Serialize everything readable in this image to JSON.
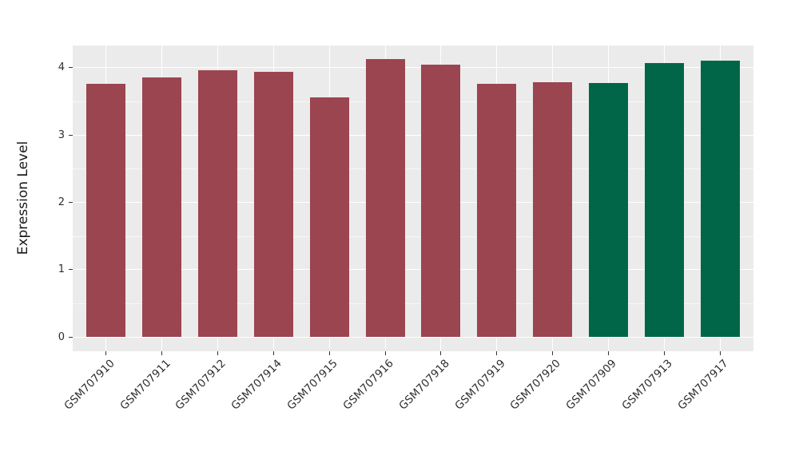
{
  "chart_data": {
    "type": "bar",
    "title": "",
    "xlabel": "",
    "ylabel": "Expression Level",
    "categories": [
      "GSM707910",
      "GSM707911",
      "GSM707912",
      "GSM707914",
      "GSM707915",
      "GSM707916",
      "GSM707918",
      "GSM707919",
      "GSM707920",
      "GSM707909",
      "GSM707913",
      "GSM707917"
    ],
    "values": [
      3.76,
      3.85,
      3.96,
      3.94,
      3.56,
      4.13,
      4.05,
      3.76,
      3.79,
      3.77,
      4.07,
      4.1
    ],
    "bar_colors": [
      "#9B4551",
      "#9B4551",
      "#9B4551",
      "#9B4551",
      "#9B4551",
      "#9B4551",
      "#9B4551",
      "#9B4551",
      "#9B4551",
      "#006647",
      "#006647",
      "#006647"
    ],
    "palette": {
      "maroon_group": "#9B4551",
      "green_group": "#006647"
    },
    "yticks": [
      0,
      1,
      2,
      3,
      4
    ],
    "minor_yticks": [
      0.5,
      1.5,
      2.5,
      3.5
    ],
    "ylim": [
      0,
      4.33
    ],
    "grid": true,
    "legend": "none",
    "panel_bg": "#EBEBEB",
    "grid_color": "#FFFFFF",
    "axis_text_color": "#2e2e2e"
  }
}
